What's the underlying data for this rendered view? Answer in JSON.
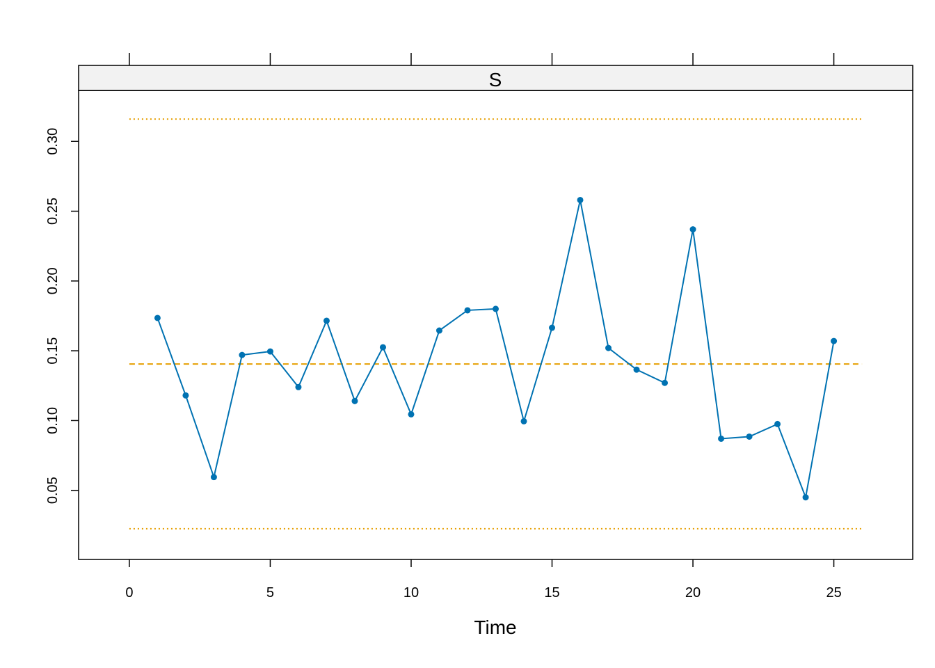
{
  "chart_data": {
    "type": "line",
    "strip_label": "S",
    "xlabel": "Time",
    "ylabel": "",
    "xlim": [
      -1.8,
      27.8
    ],
    "ylim": [
      0.0005,
      0.3365
    ],
    "x_ticks": [
      0,
      5,
      10,
      15,
      20,
      25
    ],
    "x_tick_labels": [
      "0",
      "5",
      "10",
      "15",
      "20",
      "25"
    ],
    "y_ticks": [
      0.05,
      0.1,
      0.15,
      0.2,
      0.25,
      0.3
    ],
    "y_tick_labels": [
      "0.05",
      "0.10",
      "0.15",
      "0.20",
      "0.25",
      "0.30"
    ],
    "grid": false,
    "series": [
      {
        "x": [
          1,
          2,
          3,
          4,
          5,
          6,
          7,
          8,
          9,
          10,
          11,
          12,
          13,
          14,
          15,
          16,
          17,
          18,
          19,
          20,
          21,
          22,
          23,
          24,
          25
        ],
        "values": [
          0.1735,
          0.118,
          0.0595,
          0.147,
          0.1495,
          0.124,
          0.1715,
          0.114,
          0.1525,
          0.1045,
          0.1645,
          0.179,
          0.18,
          0.0995,
          0.1665,
          0.258,
          0.152,
          0.1365,
          0.127,
          0.237,
          0.087,
          0.0885,
          0.0975,
          0.045,
          0.157
        ],
        "color": "#0072B2"
      }
    ],
    "reference_lines": [
      {
        "role": "center",
        "value": 0.1405,
        "x_range": [
          0,
          26
        ],
        "style": "dashed",
        "color": "#E69F00"
      },
      {
        "role": "upper",
        "value": 0.316,
        "x_range": [
          0,
          26
        ],
        "style": "dotted",
        "color": "#E69F00"
      },
      {
        "role": "lower",
        "value": 0.0225,
        "x_range": [
          0,
          26
        ],
        "style": "dotted",
        "color": "#E69F00"
      }
    ],
    "strip_background": "#F2F2F2"
  }
}
